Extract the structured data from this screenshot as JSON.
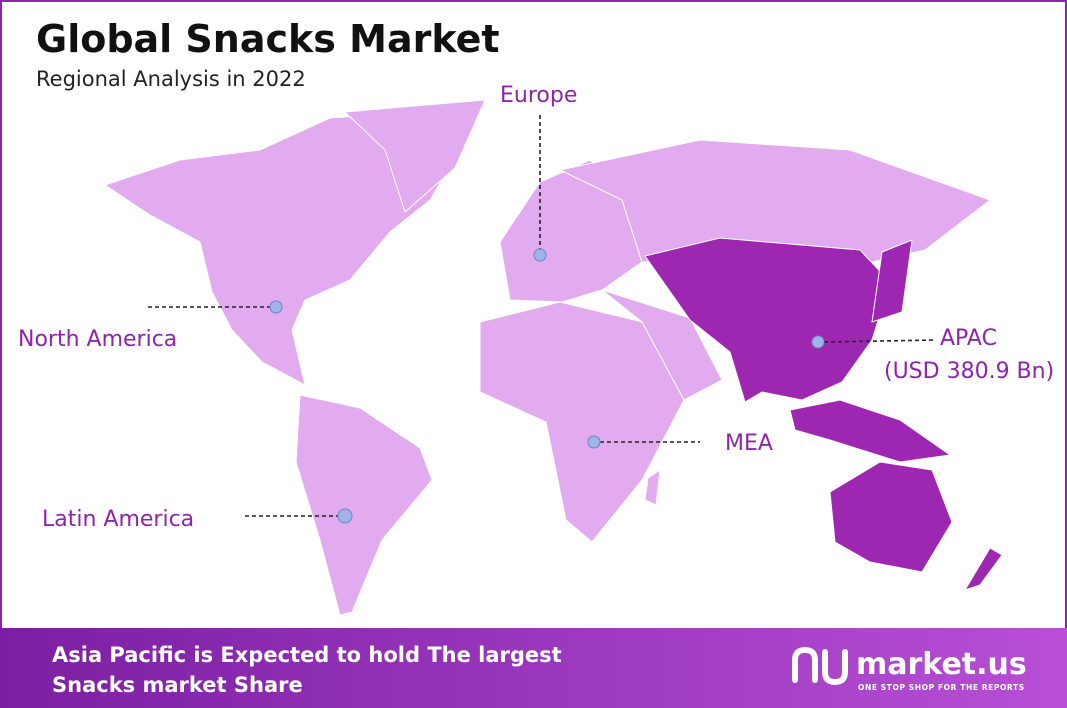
{
  "header": {
    "title": "Global Snacks Market",
    "subtitle": "Regional Analysis in 2022"
  },
  "regions": [
    {
      "name": "Europe"
    },
    {
      "name": "North America"
    },
    {
      "name": "APAC",
      "value_label": "(USD 380.9 Bn)"
    },
    {
      "name": "MEA"
    },
    {
      "name": "Latin America"
    }
  ],
  "footer": {
    "lines": [
      "Asia Pacific is Expected to hold The largest",
      "Snacks market Share"
    ],
    "brand": "market.us",
    "tagline": "ONE STOP SHOP FOR THE REPORTS"
  }
}
